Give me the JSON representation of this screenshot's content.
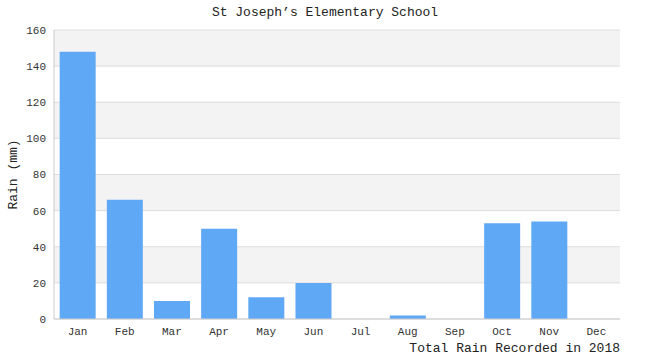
{
  "chart_data": {
    "type": "bar",
    "title": "St Joseph’s Elementary School",
    "ylabel": "Rain (mm)",
    "xlabel": "Total Rain Recorded in 2018",
    "categories": [
      "Jan",
      "Feb",
      "Mar",
      "Apr",
      "May",
      "Jun",
      "Jul",
      "Aug",
      "Sep",
      "Oct",
      "Nov",
      "Dec"
    ],
    "values": [
      148,
      66,
      10,
      50,
      12,
      20,
      0,
      2,
      0,
      53,
      54,
      0
    ],
    "color": "#5fa8f5",
    "ylim": [
      0,
      160
    ],
    "yticks": [
      0,
      20,
      40,
      60,
      80,
      100,
      120,
      140,
      160
    ],
    "grid": true
  }
}
